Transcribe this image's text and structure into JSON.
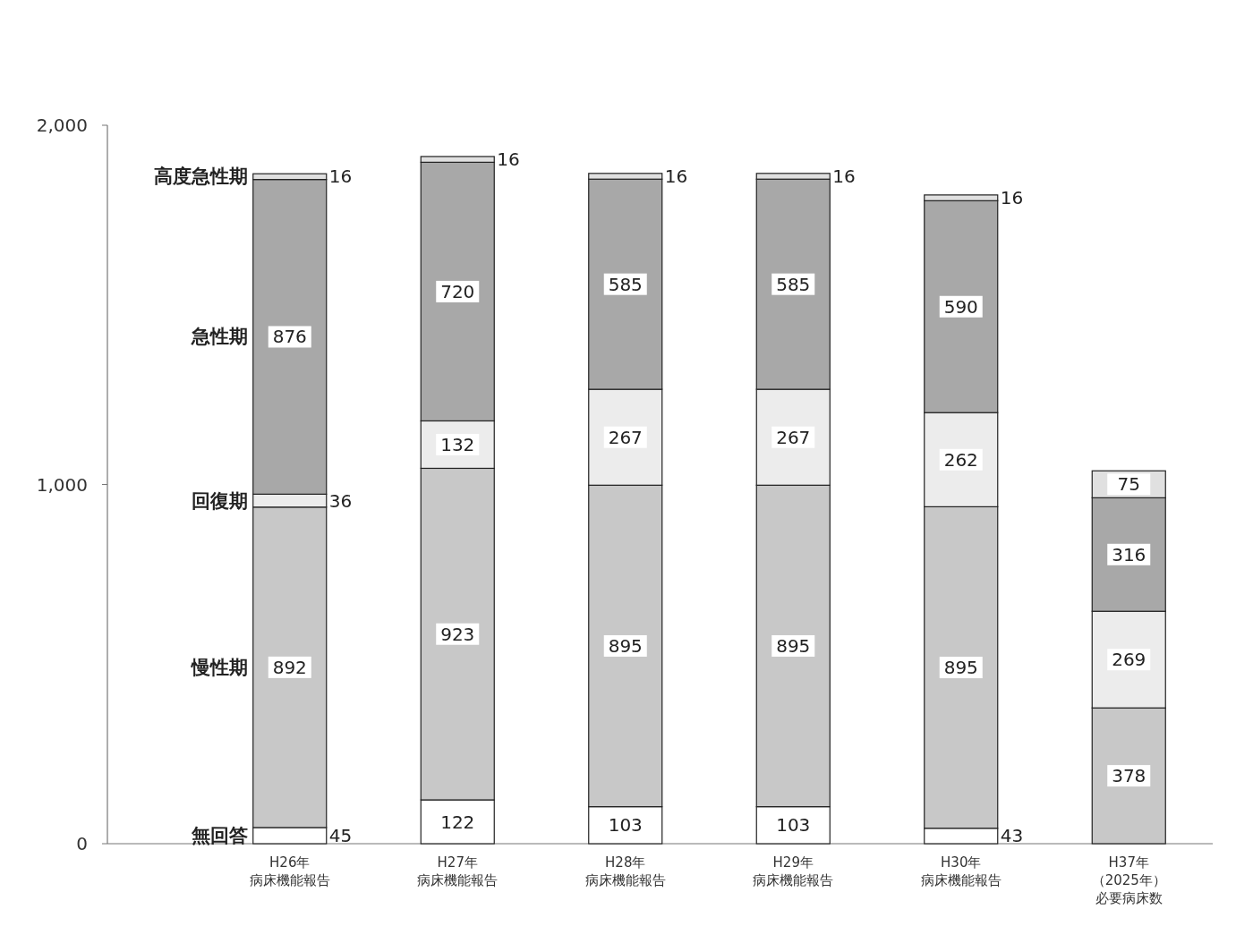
{
  "chart_data": {
    "type": "bar",
    "stacked": true,
    "data_labels": true,
    "categories": [
      "H26年病床機能報告",
      "H27年病床機能報告",
      "H28年病床機能報告",
      "H29年病床機能報告",
      "H30年病床機能報告",
      "H37年（2025年）必要病床数"
    ],
    "series": [
      {
        "name": "無回答",
        "color": "#ffffff",
        "values": [
          45,
          122,
          103,
          103,
          43,
          null
        ]
      },
      {
        "name": "慢性期",
        "color": "#c8c8c8",
        "values": [
          892,
          923,
          895,
          895,
          895,
          378
        ]
      },
      {
        "name": "回復期",
        "color": "#ececec",
        "values": [
          36,
          132,
          267,
          267,
          262,
          269
        ]
      },
      {
        "name": "急性期",
        "color": "#a8a8a8",
        "values": [
          876,
          720,
          585,
          585,
          590,
          316
        ]
      },
      {
        "name": "高度急性期",
        "color": "#e0e0e0",
        "values": [
          16,
          16,
          16,
          16,
          16,
          75
        ]
      }
    ],
    "ylim": [
      0,
      2000
    ],
    "yticks": [
      0,
      {
        "value": 1000,
        "label": "1,000"
      },
      {
        "value": 2000,
        "label": "2,000"
      }
    ],
    "grid": false
  }
}
